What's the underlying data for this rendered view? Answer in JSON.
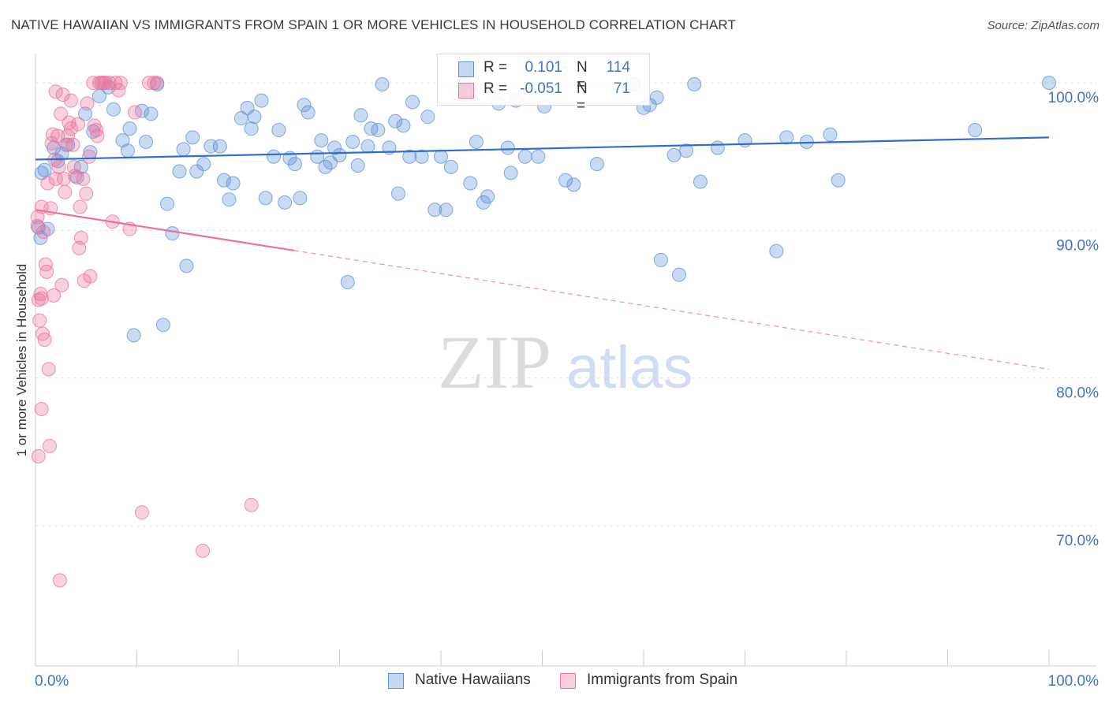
{
  "header": {
    "title": "NATIVE HAWAIIAN VS IMMIGRANTS FROM SPAIN 1 OR MORE VEHICLES IN HOUSEHOLD CORRELATION CHART",
    "source": "Source: ZipAtlas.com"
  },
  "watermark": {
    "zip": "ZIP",
    "atlas": "atlas"
  },
  "legend": {
    "r_label": "R =",
    "n_label": "N =",
    "series": [
      {
        "name": "Native Hawaiians",
        "r": "0.101",
        "n": "114",
        "color": "#5b8fdb"
      },
      {
        "name": "Immigrants from Spain",
        "r": "-0.051",
        "n": "71",
        "color": "#e9729b"
      }
    ]
  },
  "chart_data": {
    "type": "scatter",
    "title": "NATIVE HAWAIIAN VS IMMIGRANTS FROM SPAIN 1 OR MORE VEHICLES IN HOUSEHOLD CORRELATION CHART",
    "xlabel": "",
    "ylabel": "1 or more Vehicles in Household",
    "xlim": [
      0,
      100
    ],
    "ylim": [
      60.5,
      101.5
    ],
    "x_tick_labels": [
      "0.0%",
      "100.0%"
    ],
    "y_ticks": [
      100,
      90,
      80,
      70
    ],
    "y_tick_labels": [
      "100.0%",
      "90.0%",
      "80.0%",
      "70.0%"
    ],
    "grid": true,
    "series": [
      {
        "name": "Native Hawaiians",
        "color": "#5b8fdb",
        "trend": {
          "x": [
            0,
            100
          ],
          "y": [
            94.8,
            96.3
          ],
          "dashed_from": null
        },
        "points": [
          [
            0.3,
            90.2
          ],
          [
            0.5,
            89.5
          ],
          [
            0.6,
            93.9
          ],
          [
            0.9,
            94.1
          ],
          [
            1.2,
            90.1
          ],
          [
            1.8,
            95.6
          ],
          [
            2.2,
            94.7
          ],
          [
            2.6,
            95.2
          ],
          [
            3.2,
            95.8
          ],
          [
            4.1,
            93.6
          ],
          [
            4.5,
            94.3
          ],
          [
            4.9,
            97.9
          ],
          [
            5.4,
            95.3
          ],
          [
            5.7,
            96.7
          ],
          [
            6.3,
            99.1
          ],
          [
            7.2,
            99.7
          ],
          [
            7.7,
            98.2
          ],
          [
            8.6,
            96.1
          ],
          [
            9.1,
            95.4
          ],
          [
            9.3,
            96.9
          ],
          [
            9.7,
            82.9
          ],
          [
            10.5,
            98.1
          ],
          [
            10.9,
            96.0
          ],
          [
            11.4,
            97.9
          ],
          [
            12.0,
            99.9
          ],
          [
            12.6,
            83.6
          ],
          [
            13.0,
            91.8
          ],
          [
            13.5,
            89.8
          ],
          [
            14.2,
            94.0
          ],
          [
            14.6,
            95.5
          ],
          [
            14.9,
            87.6
          ],
          [
            15.5,
            96.3
          ],
          [
            15.9,
            94.0
          ],
          [
            16.6,
            94.5
          ],
          [
            17.3,
            95.7
          ],
          [
            18.2,
            95.7
          ],
          [
            18.6,
            93.4
          ],
          [
            19.1,
            92.1
          ],
          [
            19.5,
            93.2
          ],
          [
            20.3,
            97.6
          ],
          [
            20.9,
            98.3
          ],
          [
            21.3,
            96.9
          ],
          [
            21.6,
            97.7
          ],
          [
            22.3,
            98.8
          ],
          [
            22.7,
            92.2
          ],
          [
            23.5,
            95.0
          ],
          [
            24.0,
            96.8
          ],
          [
            24.6,
            91.9
          ],
          [
            25.1,
            94.9
          ],
          [
            25.6,
            94.5
          ],
          [
            26.1,
            92.2
          ],
          [
            26.5,
            98.5
          ],
          [
            26.9,
            98.0
          ],
          [
            27.8,
            95.0
          ],
          [
            28.2,
            96.1
          ],
          [
            28.6,
            94.3
          ],
          [
            29.1,
            94.6
          ],
          [
            29.5,
            95.6
          ],
          [
            30.0,
            95.1
          ],
          [
            30.8,
            86.5
          ],
          [
            31.3,
            96.0
          ],
          [
            31.8,
            94.4
          ],
          [
            32.1,
            97.8
          ],
          [
            32.8,
            95.7
          ],
          [
            33.1,
            96.9
          ],
          [
            33.8,
            96.8
          ],
          [
            34.2,
            99.9
          ],
          [
            34.9,
            95.6
          ],
          [
            35.5,
            97.4
          ],
          [
            35.8,
            92.5
          ],
          [
            36.3,
            97.1
          ],
          [
            36.9,
            95.0
          ],
          [
            37.2,
            98.7
          ],
          [
            38.1,
            95.0
          ],
          [
            38.7,
            97.7
          ],
          [
            39.4,
            91.4
          ],
          [
            40.0,
            95.0
          ],
          [
            40.5,
            91.4
          ],
          [
            41.0,
            94.3
          ],
          [
            41.8,
            99.0
          ],
          [
            42.3,
            100.0
          ],
          [
            42.9,
            93.2
          ],
          [
            43.5,
            96.0
          ],
          [
            44.2,
            91.9
          ],
          [
            44.6,
            92.3
          ],
          [
            45.1,
            99.5
          ],
          [
            45.7,
            98.6
          ],
          [
            46.6,
            95.6
          ],
          [
            46.9,
            93.9
          ],
          [
            47.4,
            98.8
          ],
          [
            48.3,
            95.0
          ],
          [
            49.6,
            95.0
          ],
          [
            50.2,
            98.4
          ],
          [
            52.3,
            93.4
          ],
          [
            53.1,
            93.1
          ],
          [
            55.4,
            94.5
          ],
          [
            59.0,
            99.9
          ],
          [
            60.0,
            98.3
          ],
          [
            60.6,
            98.5
          ],
          [
            61.3,
            99.0
          ],
          [
            61.7,
            88.0
          ],
          [
            63.0,
            95.1
          ],
          [
            63.5,
            87.0
          ],
          [
            64.2,
            95.4
          ],
          [
            65.0,
            99.9
          ],
          [
            65.6,
            93.3
          ],
          [
            67.3,
            95.6
          ],
          [
            70.0,
            96.1
          ],
          [
            73.1,
            88.6
          ],
          [
            74.1,
            96.3
          ],
          [
            76.1,
            96.0
          ],
          [
            78.4,
            96.5
          ],
          [
            79.2,
            93.4
          ],
          [
            92.7,
            96.8
          ],
          [
            100.0,
            100.0
          ]
        ]
      },
      {
        "name": "Immigrants from Spain",
        "color": "#e9729b",
        "trend": {
          "x": [
            0,
            100
          ],
          "y": [
            91.4,
            80.6
          ],
          "dashed_from": 25.5
        },
        "points": [
          [
            0.2,
            90.9
          ],
          [
            0.2,
            90.3
          ],
          [
            0.3,
            85.3
          ],
          [
            0.3,
            74.7
          ],
          [
            0.4,
            83.9
          ],
          [
            0.5,
            85.7
          ],
          [
            0.6,
            91.6
          ],
          [
            0.6,
            85.4
          ],
          [
            0.6,
            77.9
          ],
          [
            0.7,
            83.0
          ],
          [
            0.8,
            89.9
          ],
          [
            0.9,
            82.6
          ],
          [
            1.0,
            87.7
          ],
          [
            1.1,
            87.2
          ],
          [
            1.2,
            93.2
          ],
          [
            1.3,
            80.6
          ],
          [
            1.4,
            75.4
          ],
          [
            1.5,
            91.5
          ],
          [
            1.6,
            95.9
          ],
          [
            1.7,
            96.5
          ],
          [
            1.8,
            85.6
          ],
          [
            1.9,
            94.8
          ],
          [
            2.0,
            99.4
          ],
          [
            2.0,
            93.5
          ],
          [
            2.2,
            96.4
          ],
          [
            2.3,
            94.3
          ],
          [
            2.4,
            66.3
          ],
          [
            2.5,
            97.9
          ],
          [
            2.6,
            86.3
          ],
          [
            2.7,
            99.2
          ],
          [
            2.8,
            93.5
          ],
          [
            2.9,
            92.6
          ],
          [
            3.0,
            95.8
          ],
          [
            3.2,
            96.4
          ],
          [
            3.3,
            97.3
          ],
          [
            3.5,
            98.8
          ],
          [
            3.5,
            96.9
          ],
          [
            3.7,
            95.8
          ],
          [
            3.8,
            94.3
          ],
          [
            3.9,
            93.7
          ],
          [
            4.2,
            97.2
          ],
          [
            4.3,
            88.8
          ],
          [
            4.4,
            91.6
          ],
          [
            4.5,
            89.5
          ],
          [
            4.7,
            93.5
          ],
          [
            4.8,
            86.6
          ],
          [
            5.0,
            92.5
          ],
          [
            5.1,
            98.6
          ],
          [
            5.3,
            95.0
          ],
          [
            5.4,
            86.9
          ],
          [
            5.7,
            100.0
          ],
          [
            5.8,
            97.1
          ],
          [
            6.0,
            96.8
          ],
          [
            6.1,
            96.4
          ],
          [
            6.3,
            100.0
          ],
          [
            6.5,
            100.0
          ],
          [
            6.7,
            100.0
          ],
          [
            6.9,
            100.0
          ],
          [
            7.3,
            100.0
          ],
          [
            7.6,
            90.6
          ],
          [
            7.9,
            100.0
          ],
          [
            8.2,
            99.5
          ],
          [
            8.4,
            100.0
          ],
          [
            9.3,
            90.1
          ],
          [
            9.8,
            98.0
          ],
          [
            10.5,
            70.9
          ],
          [
            11.2,
            100.0
          ],
          [
            11.7,
            100.0
          ],
          [
            12.0,
            100.0
          ],
          [
            16.5,
            68.3
          ],
          [
            21.3,
            71.4
          ]
        ]
      }
    ]
  }
}
